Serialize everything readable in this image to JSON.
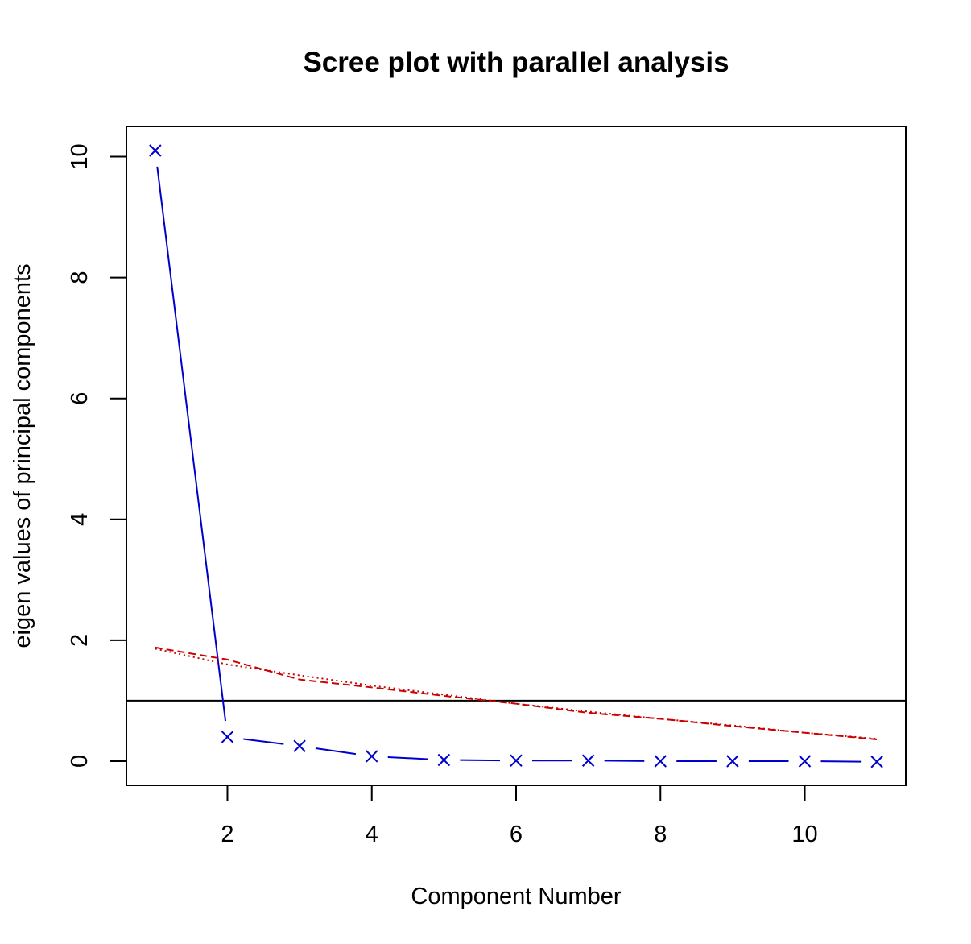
{
  "chart_data": {
    "type": "line",
    "title": "Scree plot with parallel analysis",
    "xlabel": "Component Number",
    "ylabel": "eigen values of principal components",
    "xlim": [
      0.6,
      11.4
    ],
    "ylim": [
      -0.4,
      10.5
    ],
    "xticks": [
      2,
      4,
      6,
      8,
      10
    ],
    "yticks": [
      0,
      2,
      4,
      6,
      8,
      10
    ],
    "grid": false,
    "reference_line": {
      "y": 1,
      "color": "#000000"
    },
    "series": [
      {
        "style": "solid",
        "marker": "x",
        "color": "#0000cc",
        "x": [
          1,
          2,
          3,
          4,
          5,
          6,
          7,
          8,
          9,
          10,
          11
        ],
        "values": [
          10.1,
          0.4,
          0.25,
          0.08,
          0.02,
          0.01,
          0.01,
          0.0,
          0.0,
          0.0,
          -0.01
        ]
      },
      {
        "style": "dashed",
        "marker": "none",
        "color": "#cc0000",
        "x": [
          1,
          2,
          3,
          4,
          5,
          6,
          7,
          8,
          9,
          10,
          11
        ],
        "values": [
          1.88,
          1.68,
          1.35,
          1.22,
          1.08,
          0.95,
          0.8,
          0.7,
          0.58,
          0.47,
          0.36
        ]
      },
      {
        "style": "dotted",
        "marker": "none",
        "color": "#cc0000",
        "x": [
          1,
          2,
          3,
          4,
          5,
          6,
          7,
          8,
          9,
          10,
          11
        ],
        "values": [
          1.86,
          1.6,
          1.42,
          1.25,
          1.1,
          0.95,
          0.82,
          0.7,
          0.59,
          0.47,
          0.37
        ]
      }
    ]
  }
}
